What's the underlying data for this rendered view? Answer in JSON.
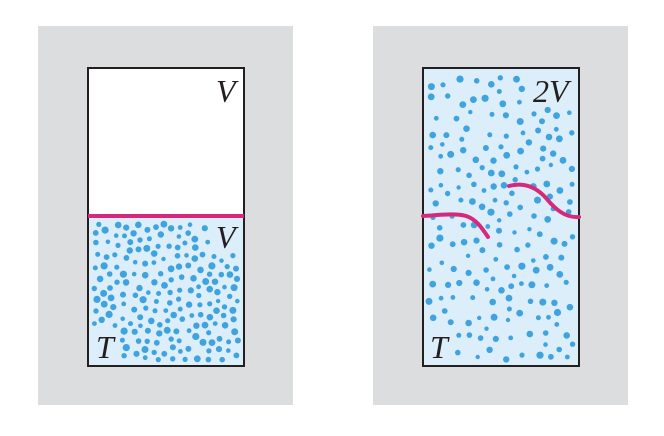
{
  "colors": {
    "background_panel": "#dcdddf",
    "gas_fill": "#dbeef9",
    "empty_fill": "#ffffff",
    "molecule": "#3fa3e0",
    "partition": "#d6297b",
    "outline": "#231f20"
  },
  "panels": [
    {
      "id": "before",
      "volume_upper_label": "V",
      "volume_lower_label": "V",
      "temperature_label": "T",
      "partition": "intact"
    },
    {
      "id": "after",
      "volume_label": "2V",
      "temperature_label": "T",
      "partition": "broken"
    }
  ]
}
